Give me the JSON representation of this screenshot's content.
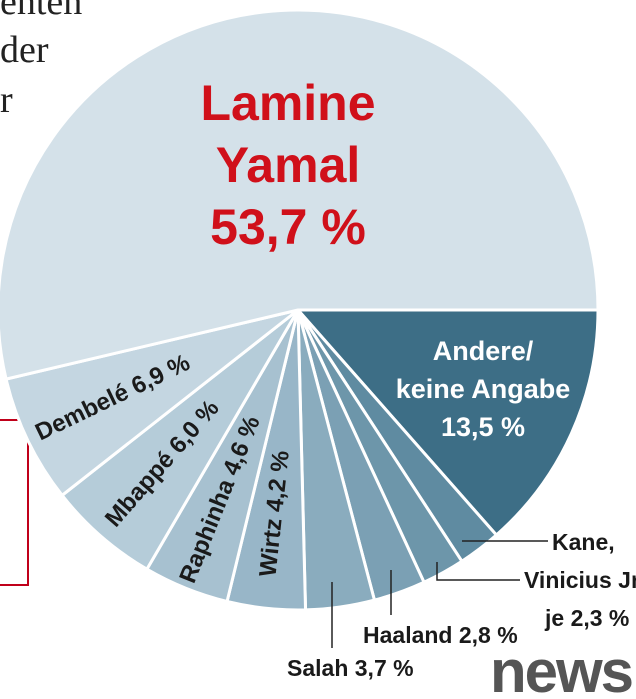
{
  "background_text": [
    "enten",
    "der",
    "r"
  ],
  "logo": "news",
  "chart_data": {
    "type": "pie",
    "categories": [
      "Andere/ keine Angabe",
      "Kane,",
      "Vinicius Jr.",
      "Haaland",
      "Salah",
      "Wirtz",
      "Raphinha",
      "Mbappé",
      "Dembelé",
      "Lamine Yamal"
    ],
    "values": [
      13.5,
      2.3,
      2.3,
      2.8,
      3.7,
      4.2,
      4.6,
      6.0,
      6.9,
      53.7
    ],
    "value_labels": [
      "13,5 %",
      null,
      "je 2,3 %",
      "2,8 %",
      "3,7 %",
      "4,2 %",
      "4,6 %",
      "6,0 %",
      "6,9 %",
      "53,7 %"
    ],
    "colors": [
      "#3d6e86",
      "#5f8ba1",
      "#6d96aa",
      "#7ba0b4",
      "#8aacbe",
      "#98b6c8",
      "#a7c1d0",
      "#b5ccd9",
      "#c4d6e1",
      "#d4e1e9"
    ]
  }
}
